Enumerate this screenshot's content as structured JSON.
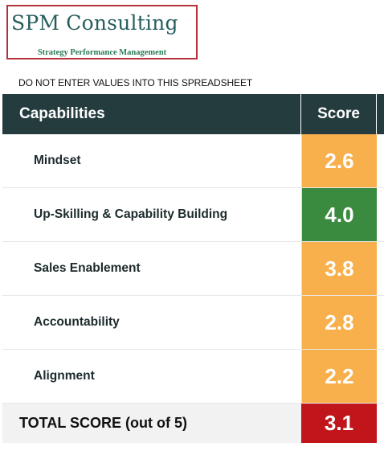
{
  "logo": {
    "title": "SPM Consulting",
    "subtitle": "Strategy Performance Management"
  },
  "warning": "DO NOT ENTER VALUES INTO THIS SPREADSHEET",
  "table": {
    "headers": {
      "capabilities": "Capabilities",
      "score": "Score"
    },
    "rows": [
      {
        "label": "Mindset",
        "score": "2.6",
        "color": "#f8b04c"
      },
      {
        "label": "Up-Skilling & Capability Building",
        "score": "4.0",
        "color": "#3a8a3f"
      },
      {
        "label": "Sales Enablement",
        "score": "3.8",
        "color": "#f8b04c"
      },
      {
        "label": "Accountability",
        "score": "2.8",
        "color": "#f8b04c"
      },
      {
        "label": "Alignment",
        "score": "2.2",
        "color": "#f8b04c"
      }
    ],
    "total": {
      "label": "TOTAL SCORE (out of 5)",
      "score": "3.1",
      "color": "#c0161b"
    }
  },
  "colors": {
    "header_bg": "#253c3e",
    "logo_border": "#b5323a",
    "logo_text": "#285e5d",
    "logo_sub": "#2b7a55"
  }
}
